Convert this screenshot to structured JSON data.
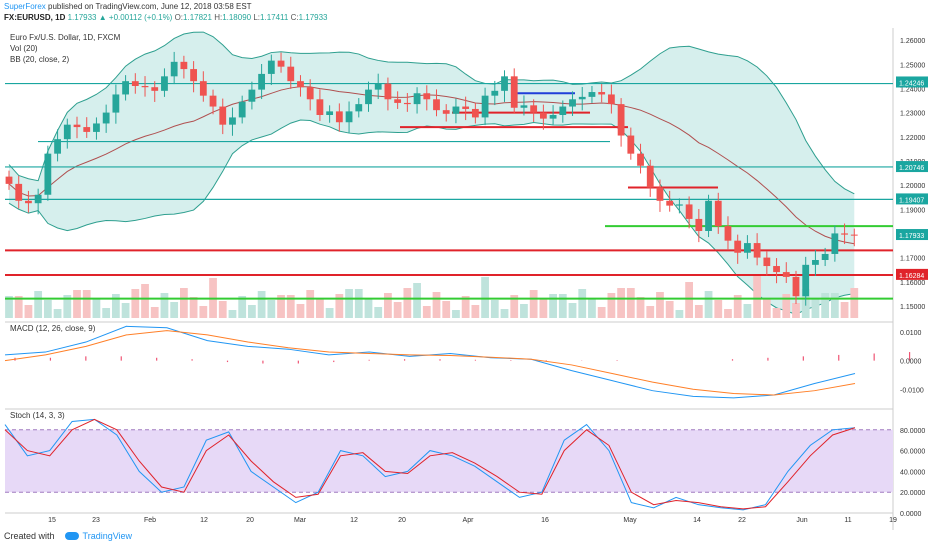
{
  "header": {
    "publisher": "SuperForex",
    "published_text": " published on TradingView.com, June 12, 2018 03:58 EST",
    "symbol": "FX:EURUSD, 1D",
    "last": "1.17933",
    "change": "+0.00112 (+0.1%)",
    "ohlc": {
      "o_label": "O:",
      "o": "1.17821",
      "h_label": "H:",
      "h": "1.18090",
      "l_label": "L:",
      "l": "1.17411",
      "c_label": "C:",
      "c": "1.17933"
    }
  },
  "panes": {
    "main": {
      "title": "Euro Fx/U.S. Dollar, 1D, FXCM",
      "vol_label": "Vol (20)",
      "bb_label": "BB (20, close, 2)"
    },
    "macd": {
      "label": "MACD (12, 26, close, 9)"
    },
    "stoch": {
      "label": "Stoch (14, 3, 3)"
    }
  },
  "footer": {
    "created_with": "Created with",
    "tv": "TradingView"
  },
  "colors": {
    "up": "#26a69a",
    "down": "#ef5350",
    "bb_fill": "#d6efed",
    "bb_line": "#2e9f8f",
    "red_level": "#e0232a",
    "green_level": "#33cc33",
    "teal_level": "#1aa6a0",
    "macd": "#2196f3",
    "signal": "#ff7f27",
    "hist": "#ef5373",
    "stoch_bg": "#e7d9f7"
  },
  "chart_data": [
    {
      "type": "candlestick",
      "title": "Euro Fx/U.S. Dollar, 1D, FXCM",
      "ylim": [
        1.145,
        1.265
      ],
      "y_ticks": [
        "1.26000",
        "1.25000",
        "1.24000",
        "1.23000",
        "1.22000",
        "1.21000",
        "1.20000",
        "1.19000",
        "1.18000",
        "1.17000",
        "1.16000",
        "1.15000"
      ],
      "x_ticks": [
        "15",
        "23",
        "Feb",
        "12",
        "20",
        "Mar",
        "12",
        "20",
        "Apr",
        "16",
        "May",
        "14",
        "22",
        "Jun",
        "11",
        "19"
      ],
      "price_labels": [
        {
          "value": "1.24246",
          "color": "#1aa6a0"
        },
        {
          "value": "1.20746",
          "color": "#1aa6a0"
        },
        {
          "value": "1.19407",
          "color": "#1aa6a0"
        },
        {
          "value": "1.17933",
          "color": "#1aa6a0"
        },
        {
          "value": "1.16284",
          "color": "#e0232a"
        }
      ],
      "levels": [
        {
          "y": 1.242,
          "color": "teal"
        },
        {
          "y": 1.218,
          "color": "teal"
        },
        {
          "y": 1.2075,
          "color": "teal"
        },
        {
          "y": 1.1941,
          "color": "teal"
        },
        {
          "y": 1.224,
          "color": "red"
        },
        {
          "y": 1.23,
          "color": "red"
        },
        {
          "y": 1.199,
          "color": "red"
        },
        {
          "y": 1.173,
          "color": "red"
        },
        {
          "y": 1.1628,
          "color": "red"
        },
        {
          "y": 1.183,
          "color": "green"
        },
        {
          "y": 1.153,
          "color": "green"
        },
        {
          "y": 1.238,
          "color": "blue"
        }
      ],
      "closes": [
        1.2005,
        1.1935,
        1.1925,
        1.196,
        1.213,
        1.219,
        1.225,
        1.224,
        1.222,
        1.2255,
        1.23,
        1.2375,
        1.243,
        1.241,
        1.2405,
        1.239,
        1.245,
        1.251,
        1.248,
        1.243,
        1.237,
        1.2325,
        1.225,
        1.228,
        1.2345,
        1.2395,
        1.246,
        1.2515,
        1.249,
        1.243,
        1.2405,
        1.2355,
        1.229,
        1.2305,
        1.226,
        1.2305,
        1.2335,
        1.2395,
        1.242,
        1.2355,
        1.234,
        1.2335,
        1.238,
        1.2355,
        1.231,
        1.2295,
        1.2325,
        1.2315,
        1.228,
        1.237,
        1.239,
        1.245,
        1.232,
        1.233,
        1.23,
        1.2275,
        1.229,
        1.2325,
        1.2355,
        1.2365,
        1.2385,
        1.2375,
        1.2335,
        1.2205,
        1.213,
        1.208,
        1.199,
        1.1935,
        1.1915,
        1.192,
        1.186,
        1.181,
        1.1935,
        1.183,
        1.177,
        1.172,
        1.176,
        1.17,
        1.1665,
        1.164,
        1.162,
        1.154,
        1.167,
        1.169,
        1.1715,
        1.18,
        1.1795,
        1.1793
      ]
    },
    {
      "type": "line",
      "title": "MACD (12, 26, close, 9)",
      "ylim": [
        -0.0155,
        0.0135
      ],
      "y_ticks": [
        "0.0100",
        "0.0000",
        "-0.0100"
      ],
      "series": [
        {
          "name": "MACD",
          "values": [
            0.002,
            0.003,
            0.0065,
            0.012,
            0.0115,
            0.007,
            0.005,
            0.004,
            0.002,
            0.003,
            0.0015,
            0.0025,
            0.001,
            0.0005,
            -0.0035,
            -0.007,
            -0.0105,
            -0.0125,
            -0.013,
            -0.012,
            -0.008,
            -0.0045
          ]
        },
        {
          "name": "Signal",
          "values": [
            0.0,
            0.002,
            0.005,
            0.009,
            0.0105,
            0.009,
            0.0065,
            0.0045,
            0.003,
            0.0025,
            0.002,
            0.0018,
            0.0012,
            0.0005,
            -0.0015,
            -0.0045,
            -0.0075,
            -0.01,
            -0.0115,
            -0.012,
            -0.0105,
            -0.008
          ]
        }
      ],
      "histogram": [
        0.001,
        0.001,
        0.0015,
        0.0015,
        0.001,
        0.0005,
        -0.0005,
        -0.001,
        -0.001,
        -0.0005,
        0.0003,
        0.0005,
        0.0005,
        0.0003,
        0.0002,
        0.0002,
        0.0001,
        0.0002,
        0.0005,
        0.001,
        0.0015,
        0.002,
        0.0025,
        0.003
      ]
    },
    {
      "type": "line",
      "title": "Stoch (14, 3, 3)",
      "ylim": [
        0,
        100
      ],
      "y_ticks": [
        "80.0000",
        "60.0000",
        "40.0000",
        "20.0000",
        "0.0000"
      ],
      "bands": [
        20,
        80
      ],
      "series": [
        {
          "name": "%K",
          "values": [
            85,
            55,
            60,
            88,
            90,
            75,
            40,
            20,
            25,
            70,
            78,
            40,
            25,
            10,
            20,
            60,
            55,
            35,
            40,
            60,
            55,
            45,
            30,
            15,
            20,
            70,
            85,
            60,
            10,
            5,
            15,
            8,
            5,
            3,
            8,
            40,
            65,
            80,
            82
          ]
        },
        {
          "name": "%D",
          "values": [
            80,
            60,
            55,
            80,
            90,
            80,
            50,
            25,
            20,
            60,
            75,
            50,
            30,
            15,
            18,
            55,
            58,
            40,
            38,
            55,
            58,
            48,
            35,
            20,
            18,
            60,
            80,
            65,
            20,
            8,
            12,
            10,
            6,
            4,
            6,
            30,
            55,
            75,
            82
          ]
        }
      ]
    }
  ]
}
